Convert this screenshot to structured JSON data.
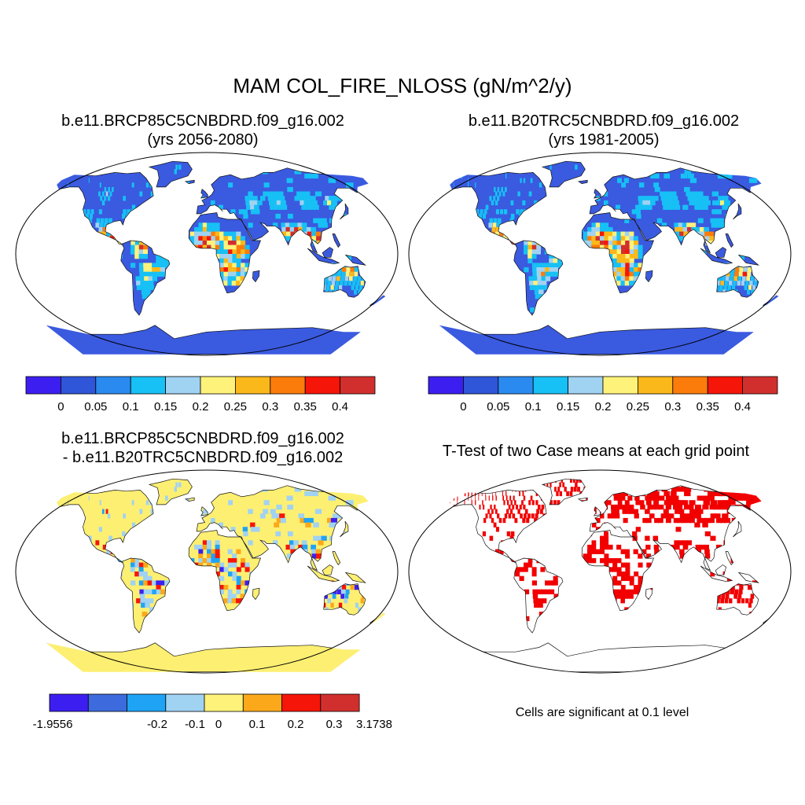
{
  "figure": {
    "title": "MAM COL_FIRE_NLOSS (gN/m^2/y)",
    "panels": [
      {
        "title_line1": "b.e11.BRCP85C5CNBDRD.f09_g16.002",
        "title_line2": "(yrs 2056-2080)"
      },
      {
        "title_line1": "b.e11.B20TRC5CNBDRD.f09_g16.002",
        "title_line2": "(yrs 1981-2005)"
      },
      {
        "title_line1": "b.e11.BRCP85C5CNBDRD.f09_g16.002",
        "title_line2": "- b.e11.B20TRC5CNBDRD.f09_g16.002"
      },
      {
        "title_line1": "T-Test of two Case means at each grid point",
        "title_line2": ""
      }
    ],
    "significance_note": "Cells are significant at 0.1 level"
  },
  "colorbars": {
    "absolute": {
      "colors": [
        "#3c1ff0",
        "#2f55d8",
        "#2a8af0",
        "#17c0f5",
        "#a0d2f2",
        "#fff27a",
        "#fbb81a",
        "#fb7c0a",
        "#f61509",
        "#d12f2d"
      ],
      "labels": [
        "0",
        "0.05",
        "0.1",
        "0.15",
        "0.2",
        "0.25",
        "0.3",
        "0.35",
        "0.4"
      ]
    },
    "difference": {
      "colors": [
        "#3c1ff0",
        "#3d6bdd",
        "#1fa4f5",
        "#a0d2f2",
        "#fff27a",
        "#fba81a",
        "#f61509",
        "#d12f2d"
      ],
      "labels": [
        "-1.9556",
        "-0.2",
        "-0.1",
        "0",
        "0.1",
        "0.2",
        "0.3",
        "3.1738"
      ]
    },
    "significance_color": "#f20000",
    "ocean_color": "#ffffff",
    "land_base_abs": "#3a5ae0",
    "land_base_diff": "#fdef72"
  }
}
